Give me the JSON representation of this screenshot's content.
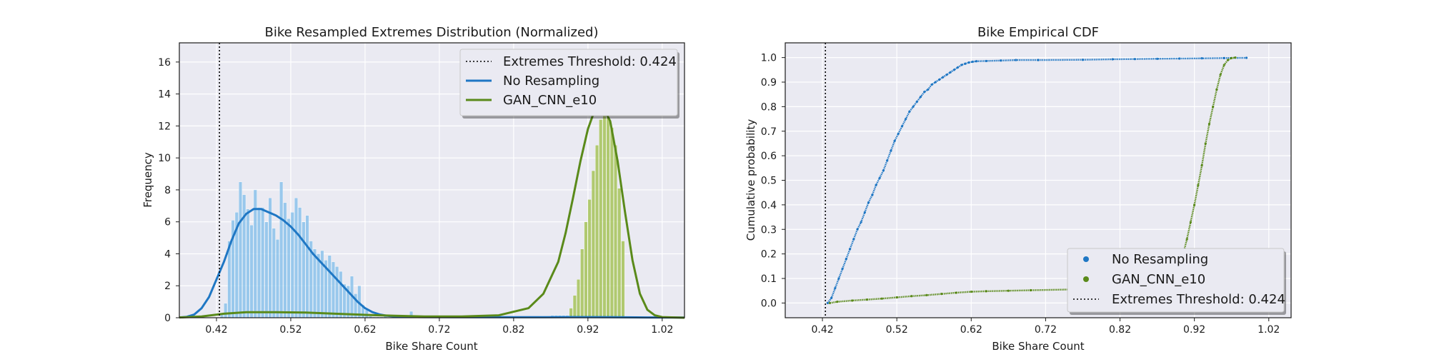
{
  "colors": {
    "background": "#eaeaf2",
    "grid": "#ffffff",
    "no_resampling": "#1f77c4",
    "no_resampling_bars": "#8cc3eb",
    "gan": "#5a8a1a",
    "gan_bars": "#a6c45a",
    "threshold": "#000000"
  },
  "chart_data": [
    {
      "type": "bar",
      "title": "Bike Resampled Extremes Distribution (Normalized)",
      "xlabel": "Bike Share Count",
      "ylabel": "Frequency",
      "xlim": [
        0.37,
        1.05
      ],
      "ylim": [
        0,
        17.2
      ],
      "xticks": [
        "0.42",
        "0.52",
        "0.62",
        "0.72",
        "0.82",
        "0.92",
        "1.02"
      ],
      "yticks": [
        "0",
        "2",
        "4",
        "6",
        "8",
        "10",
        "12",
        "14",
        "16"
      ],
      "grid": true,
      "legend_position": "top-right",
      "threshold": {
        "name": "Extremes Threshold: 0.424",
        "x": 0.424,
        "style": "dotted"
      },
      "series": [
        {
          "name": "No Resampling",
          "kind": "histogram+kde",
          "bin_width": 0.005,
          "bins_x": [
            0.4275,
            0.4325,
            0.4375,
            0.4425,
            0.4475,
            0.4525,
            0.4575,
            0.4625,
            0.4675,
            0.4725,
            0.4775,
            0.4825,
            0.4875,
            0.4925,
            0.4975,
            0.5025,
            0.5075,
            0.5125,
            0.5175,
            0.5225,
            0.5275,
            0.5325,
            0.5375,
            0.5425,
            0.5475,
            0.5525,
            0.5575,
            0.5625,
            0.5675,
            0.5725,
            0.5775,
            0.5825,
            0.5875,
            0.5925,
            0.5975,
            0.6025,
            0.6075,
            0.6125,
            0.6175,
            0.6225,
            0.6275,
            0.6325,
            0.6375,
            0.6425,
            0.6475,
            0.6825,
            0.7675,
            0.8575,
            0.8625,
            0.8675,
            0.8725,
            0.8775,
            0.8825,
            0.8875,
            0.8925,
            0.8975,
            0.9025,
            0.9075,
            0.9125,
            0.9175,
            0.9225,
            0.9275,
            0.9325,
            0.9375,
            0.9425,
            0.9475,
            0.9525,
            0.9575,
            0.9625,
            0.9675
          ],
          "bins_y": [
            0.3,
            0.9,
            4.8,
            6.1,
            6.6,
            8.5,
            7.7,
            6.8,
            5.8,
            8.0,
            6.9,
            6.9,
            6.0,
            7.5,
            5.6,
            4.9,
            8.5,
            7.2,
            6.2,
            6.6,
            7.5,
            6.9,
            6.0,
            6.4,
            4.8,
            4.3,
            4.0,
            4.2,
            3.6,
            3.9,
            3.5,
            3.2,
            2.9,
            2.1,
            2.0,
            2.6,
            1.5,
            2.0,
            0.8,
            0.5,
            0.1,
            0.05,
            0.05,
            0.05,
            0.1,
            0.4,
            0.1,
            0.1,
            0.1,
            0.1,
            0.15,
            0.15,
            0.15,
            0.15,
            0.15,
            0.2,
            0.2,
            0.2,
            0.2,
            0.2,
            0.2,
            0.2,
            0.2,
            0.2,
            0.2,
            0.2,
            0.2,
            0.2,
            0.2,
            0.2
          ],
          "kde_x": [
            0.37,
            0.38,
            0.39,
            0.4,
            0.41,
            0.42,
            0.43,
            0.44,
            0.45,
            0.46,
            0.47,
            0.48,
            0.49,
            0.5,
            0.51,
            0.52,
            0.53,
            0.54,
            0.55,
            0.56,
            0.57,
            0.58,
            0.59,
            0.6,
            0.61,
            0.62,
            0.63,
            0.64,
            0.65,
            0.66,
            0.67,
            0.68,
            0.7,
            0.75,
            0.8,
            0.85,
            0.9,
            0.95,
            1.0,
            1.05
          ],
          "kde_y": [
            0.02,
            0.06,
            0.2,
            0.6,
            1.3,
            2.4,
            3.5,
            4.8,
            5.9,
            6.5,
            6.8,
            6.8,
            6.6,
            6.4,
            6.1,
            5.7,
            5.2,
            4.6,
            4.0,
            3.5,
            3.0,
            2.5,
            2.0,
            1.5,
            1.0,
            0.6,
            0.35,
            0.2,
            0.12,
            0.08,
            0.06,
            0.05,
            0.04,
            0.03,
            0.03,
            0.03,
            0.04,
            0.03,
            0.02,
            0.01
          ]
        },
        {
          "name": "GAN_CNN_e10",
          "kind": "histogram+kde",
          "bin_width": 0.005,
          "bins_x": [
            0.8975,
            0.9025,
            0.9075,
            0.9125,
            0.9175,
            0.9225,
            0.9275,
            0.9325,
            0.9375,
            0.9425,
            0.9475,
            0.9525,
            0.9575,
            0.9625,
            0.9675
          ],
          "bins_y": [
            0.6,
            1.4,
            2.4,
            4.3,
            6.0,
            7.4,
            9.2,
            10.8,
            12.4,
            13.6,
            12.5,
            11.9,
            10.8,
            8.1,
            4.8
          ],
          "kde_x": [
            0.37,
            0.4,
            0.43,
            0.46,
            0.5,
            0.54,
            0.58,
            0.62,
            0.66,
            0.7,
            0.75,
            0.8,
            0.84,
            0.86,
            0.88,
            0.89,
            0.9,
            0.91,
            0.92,
            0.93,
            0.94,
            0.95,
            0.96,
            0.97,
            0.98,
            0.99,
            1.0,
            1.01,
            1.02,
            1.05
          ],
          "kde_y": [
            0.02,
            0.08,
            0.25,
            0.35,
            0.35,
            0.32,
            0.25,
            0.18,
            0.12,
            0.08,
            0.08,
            0.15,
            0.6,
            1.5,
            3.5,
            5.3,
            7.5,
            9.8,
            11.8,
            13.1,
            13.2,
            12.3,
            9.8,
            6.6,
            3.6,
            1.5,
            0.5,
            0.15,
            0.04,
            0.0
          ]
        }
      ]
    },
    {
      "type": "scatter",
      "title": "Bike Empirical CDF",
      "xlabel": "Bike Share Count",
      "ylabel": "Cumulative probability",
      "xlim": [
        0.37,
        1.05
      ],
      "ylim": [
        -0.06,
        1.06
      ],
      "xticks": [
        "0.42",
        "0.52",
        "0.62",
        "0.72",
        "0.82",
        "0.92",
        "1.02"
      ],
      "yticks": [
        "0.0",
        "0.1",
        "0.2",
        "0.3",
        "0.4",
        "0.5",
        "0.6",
        "0.7",
        "0.8",
        "0.9",
        "1.0"
      ],
      "grid": true,
      "legend_position": "bottom-right",
      "threshold": {
        "name": "Extremes Threshold: 0.424",
        "x": 0.424,
        "style": "dotted"
      },
      "series": [
        {
          "name": "No Resampling",
          "x": [
            0.427,
            0.432,
            0.437,
            0.442,
            0.447,
            0.452,
            0.457,
            0.462,
            0.467,
            0.472,
            0.477,
            0.482,
            0.487,
            0.492,
            0.497,
            0.502,
            0.507,
            0.512,
            0.517,
            0.522,
            0.527,
            0.532,
            0.537,
            0.542,
            0.547,
            0.552,
            0.557,
            0.562,
            0.567,
            0.572,
            0.577,
            0.582,
            0.587,
            0.592,
            0.597,
            0.602,
            0.607,
            0.612,
            0.617,
            0.622,
            0.627,
            0.64,
            0.66,
            0.68,
            0.71,
            0.77,
            0.81,
            0.84,
            0.87,
            0.9,
            0.93,
            0.96,
            0.99
          ],
          "y": [
            0.0,
            0.02,
            0.06,
            0.1,
            0.14,
            0.18,
            0.22,
            0.26,
            0.3,
            0.33,
            0.37,
            0.41,
            0.44,
            0.48,
            0.51,
            0.54,
            0.58,
            0.62,
            0.66,
            0.69,
            0.72,
            0.75,
            0.78,
            0.8,
            0.82,
            0.84,
            0.86,
            0.87,
            0.89,
            0.9,
            0.91,
            0.92,
            0.93,
            0.94,
            0.95,
            0.96,
            0.97,
            0.975,
            0.98,
            0.983,
            0.985,
            0.986,
            0.988,
            0.99,
            0.99,
            0.991,
            0.993,
            0.994,
            0.995,
            0.996,
            0.997,
            0.998,
            0.999
          ]
        },
        {
          "name": "GAN_CNN_e10",
          "x": [
            0.43,
            0.44,
            0.46,
            0.48,
            0.5,
            0.52,
            0.54,
            0.56,
            0.58,
            0.6,
            0.62,
            0.64,
            0.67,
            0.7,
            0.75,
            0.8,
            0.85,
            0.88,
            0.89,
            0.895,
            0.9,
            0.905,
            0.91,
            0.915,
            0.92,
            0.925,
            0.93,
            0.935,
            0.94,
            0.945,
            0.95,
            0.955,
            0.96,
            0.965,
            0.97,
            0.975
          ],
          "y": [
            0.0,
            0.005,
            0.01,
            0.014,
            0.018,
            0.023,
            0.028,
            0.032,
            0.037,
            0.042,
            0.046,
            0.048,
            0.05,
            0.052,
            0.055,
            0.058,
            0.062,
            0.07,
            0.1,
            0.12,
            0.15,
            0.2,
            0.26,
            0.33,
            0.4,
            0.48,
            0.56,
            0.65,
            0.73,
            0.8,
            0.87,
            0.93,
            0.97,
            0.99,
            0.998,
            1.0
          ]
        }
      ]
    }
  ]
}
